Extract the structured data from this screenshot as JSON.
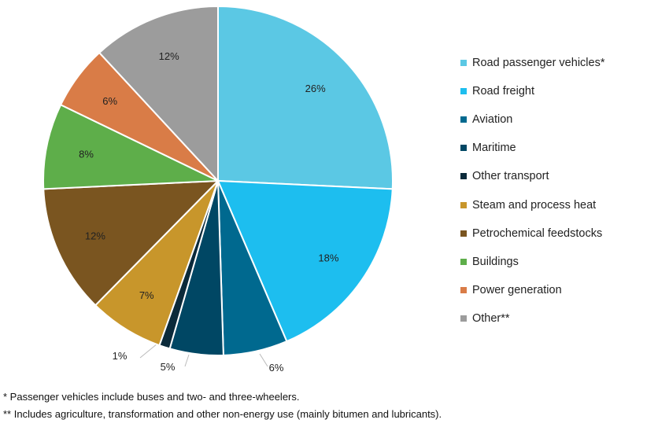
{
  "chart_data": {
    "type": "pie",
    "title": "",
    "categories": [
      "Road passenger vehicles*",
      "Road freight",
      "Aviation",
      "Maritime",
      "Other transport",
      "Steam and process heat",
      "Petrochemical feedstocks",
      "Buildings",
      "Power generation",
      "Other**"
    ],
    "values": [
      26,
      18,
      6,
      5,
      1,
      7,
      12,
      8,
      6,
      12
    ],
    "labels": [
      "26%",
      "18%",
      "6%",
      "5%",
      "1%",
      "7%",
      "12%",
      "8%",
      "6%",
      "12%"
    ],
    "colors": [
      "#5BC8E4",
      "#1DBEEF",
      "#00698F",
      "#004764",
      "#0B2A3A",
      "#C8962B",
      "#7A5520",
      "#5EAE4A",
      "#D97C47",
      "#9C9C9C"
    ],
    "legend_position": "right",
    "start_angle": "12 o'clock, clockwise"
  },
  "footnotes": [
    "* Passenger vehicles include buses and two- and three-wheelers.",
    "** Includes agriculture, transformation and other non-energy use (mainly bitumen and lubricants)."
  ]
}
